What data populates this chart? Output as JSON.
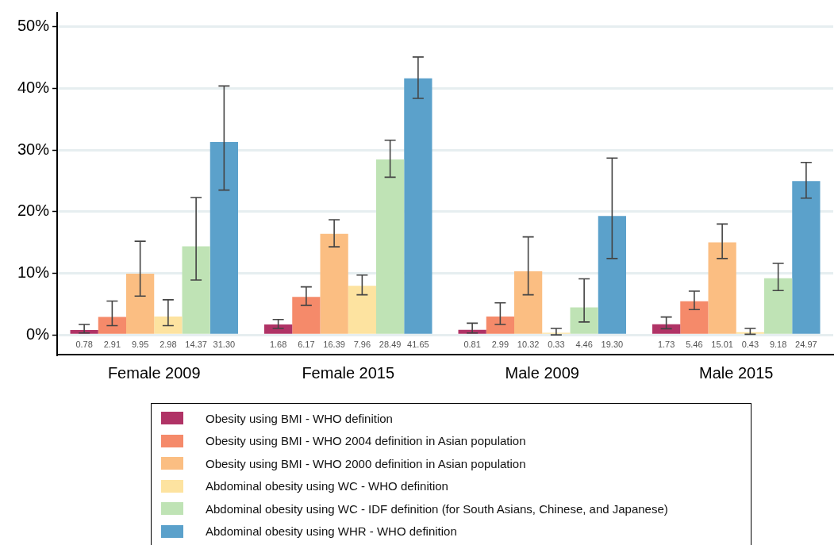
{
  "chart_data": {
    "type": "bar",
    "categories": [
      "Female 2009",
      "Female 2015",
      "Male 2009",
      "Male 2015"
    ],
    "ylim": [
      -3.2,
      52.3
    ],
    "yticks": [
      {
        "value": 0,
        "label": "0%"
      },
      {
        "value": 10,
        "label": "10%"
      },
      {
        "value": 20,
        "label": "20%"
      },
      {
        "value": 30,
        "label": "30%"
      },
      {
        "value": 40,
        "label": "40%"
      },
      {
        "value": 50,
        "label": "50%"
      }
    ],
    "grid": "y",
    "legend": "bottom",
    "series": [
      {
        "name": "Obesity using BMI - WHO definition",
        "color": "#b03366",
        "values": [
          0.78,
          1.68,
          0.81,
          1.73
        ],
        "value_labels": [
          "0.78",
          "1.68",
          "0.81",
          "1.73"
        ],
        "errors": [
          [
            0.3,
            1.7
          ],
          [
            1.05,
            2.5
          ],
          [
            0.3,
            1.9
          ],
          [
            1.0,
            2.9
          ]
        ]
      },
      {
        "name": "Obesity using BMI - WHO 2004 definition in Asian population",
        "color": "#f58a6a",
        "values": [
          2.91,
          6.17,
          2.99,
          5.46
        ],
        "value_labels": [
          "2.91",
          "6.17",
          "2.99",
          "5.46"
        ],
        "errors": [
          [
            1.5,
            5.5
          ],
          [
            4.8,
            7.8
          ],
          [
            1.7,
            5.2
          ],
          [
            4.1,
            7.1
          ]
        ]
      },
      {
        "name": "Obesity using BMI - WHO 2000 definition in Asian population",
        "color": "#fbbe82",
        "values": [
          9.95,
          16.39,
          10.32,
          15.01
        ],
        "value_labels": [
          "9.95",
          "16.39",
          "10.32",
          "15.01"
        ],
        "errors": [
          [
            6.3,
            15.2
          ],
          [
            14.3,
            18.7
          ],
          [
            6.5,
            15.9
          ],
          [
            12.4,
            18.0
          ]
        ]
      },
      {
        "name": "Abdominal obesity using WC - WHO definition",
        "color": "#fde3a0",
        "values": [
          2.98,
          7.96,
          0.33,
          0.43
        ],
        "value_labels": [
          "2.98",
          "7.96",
          "0.33",
          "0.43"
        ],
        "errors": [
          [
            1.5,
            5.7
          ],
          [
            6.5,
            9.7
          ],
          [
            0,
            1.05
          ],
          [
            0.1,
            1.05
          ]
        ]
      },
      {
        "name": "Abdominal obesity using WC - IDF definition (for South Asians, Chinese, and Japanese)",
        "color": "#bfe3b5",
        "values": [
          14.37,
          28.49,
          4.46,
          9.18
        ],
        "value_labels": [
          "14.37",
          "28.49",
          "4.46",
          "9.18"
        ],
        "errors": [
          [
            8.9,
            22.3
          ],
          [
            25.6,
            31.6
          ],
          [
            2.1,
            9.1
          ],
          [
            7.2,
            11.6
          ]
        ]
      },
      {
        "name": "Abdominal obesity using WHR - WHO definition",
        "color": "#5ba1cb",
        "values": [
          31.3,
          41.65,
          19.3,
          24.97
        ],
        "value_labels": [
          "31.30",
          "41.65",
          "19.30",
          "24.97"
        ],
        "errors": [
          [
            23.5,
            40.4
          ],
          [
            38.4,
            45.1
          ],
          [
            12.4,
            28.7
          ],
          [
            22.2,
            28.0
          ]
        ]
      }
    ]
  }
}
